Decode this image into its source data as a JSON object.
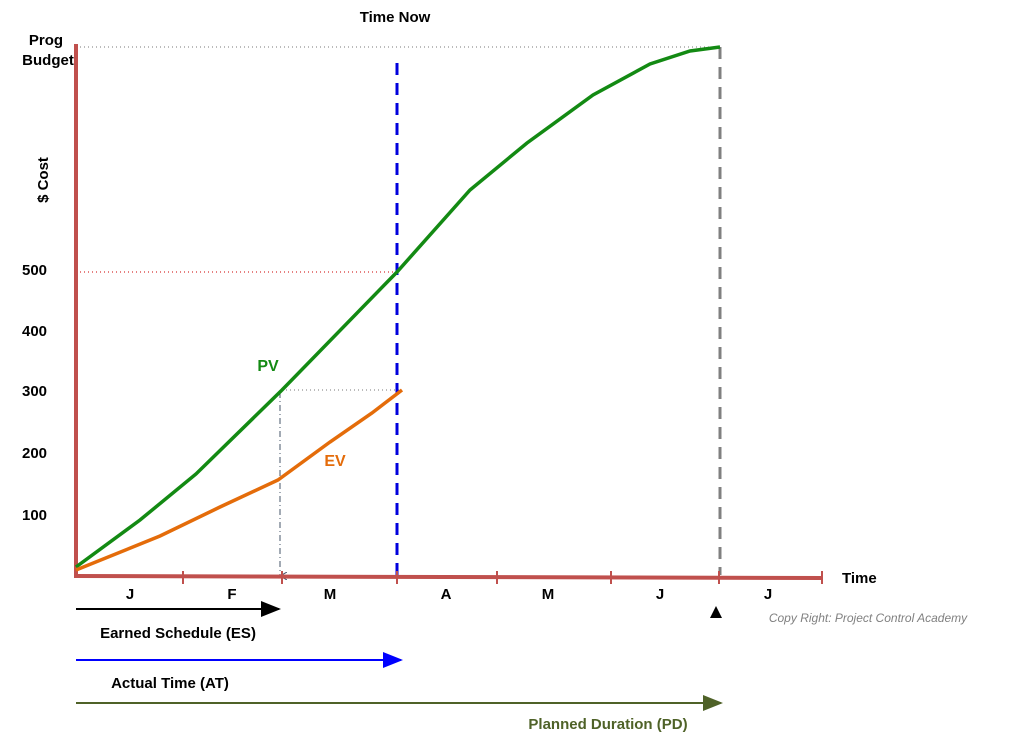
{
  "header": {
    "title": "Time Now"
  },
  "y_axis": {
    "budget_label": [
      "Prog",
      "Budget"
    ],
    "title": "$ Cost",
    "ticks": [
      "500",
      "400",
      "300",
      "200",
      "100"
    ]
  },
  "x_axis": {
    "title": "Time",
    "months": [
      "J",
      "F",
      "M",
      "A",
      "M",
      "J",
      "J"
    ]
  },
  "curves": {
    "pv": "PV",
    "ev": "EV"
  },
  "arrows": {
    "es": "Earned Schedule (ES)",
    "at": "Actual Time (AT)",
    "pd": "Planned Duration (PD)"
  },
  "copyright": "Copy Right: Project Control Academy"
}
